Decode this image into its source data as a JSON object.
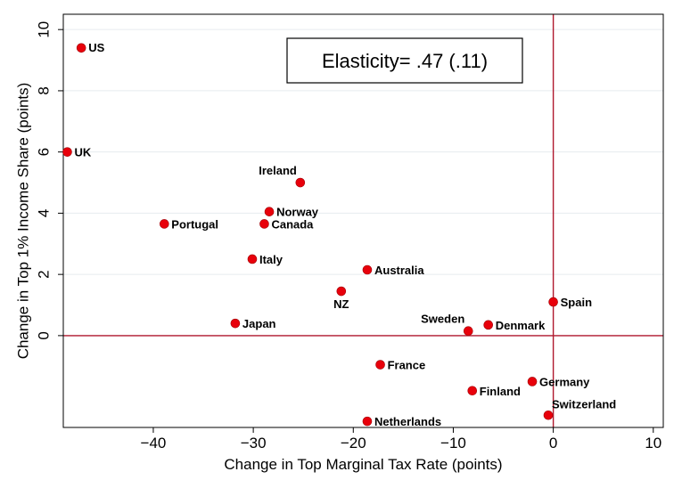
{
  "chart_data": {
    "type": "scatter",
    "xlabel": "Change in Top Marginal Tax Rate (points)",
    "ylabel": "Change in Top 1% Income Share (points)",
    "xlim": [
      -49,
      11
    ],
    "ylim": [
      -3,
      10.5
    ],
    "xticks": [
      -40,
      -30,
      -20,
      -10,
      0,
      10
    ],
    "xtick_labels": [
      "−40",
      "−30",
      "−20",
      "−10",
      "0",
      "10"
    ],
    "yticks": [
      0,
      2,
      4,
      6,
      8,
      10
    ],
    "ytick_labels": [
      "0",
      "2",
      "4",
      "6",
      "8",
      "10"
    ],
    "grid": "horizontal",
    "reference_lines": {
      "x": 0,
      "y": 0,
      "color": "#b0182d"
    },
    "marker_color": "#e8000b",
    "annotation": "Elasticity= .47 (.11)",
    "points": [
      {
        "label": "US",
        "x": -47.2,
        "y": 9.4
      },
      {
        "label": "UK",
        "x": -48.6,
        "y": 6.0
      },
      {
        "label": "Ireland",
        "x": -25.3,
        "y": 5.0
      },
      {
        "label": "Norway",
        "x": -28.4,
        "y": 4.05
      },
      {
        "label": "Canada",
        "x": -28.9,
        "y": 3.65
      },
      {
        "label": "Portugal",
        "x": -38.9,
        "y": 3.65
      },
      {
        "label": "Italy",
        "x": -30.1,
        "y": 2.5
      },
      {
        "label": "Australia",
        "x": -18.6,
        "y": 2.15
      },
      {
        "label": "NZ",
        "x": -21.2,
        "y": 1.45
      },
      {
        "label": "Japan",
        "x": -31.8,
        "y": 0.4
      },
      {
        "label": "Sweden",
        "x": -8.5,
        "y": 0.15
      },
      {
        "label": "Denmark",
        "x": -6.5,
        "y": 0.35
      },
      {
        "label": "Spain",
        "x": 0.0,
        "y": 1.1
      },
      {
        "label": "France",
        "x": -17.3,
        "y": -0.95
      },
      {
        "label": "Germany",
        "x": -2.1,
        "y": -1.5
      },
      {
        "label": "Finland",
        "x": -8.1,
        "y": -1.8
      },
      {
        "label": "Switzerland",
        "x": -0.5,
        "y": -2.6
      },
      {
        "label": "Netherlands",
        "x": -18.6,
        "y": -2.8
      }
    ]
  }
}
